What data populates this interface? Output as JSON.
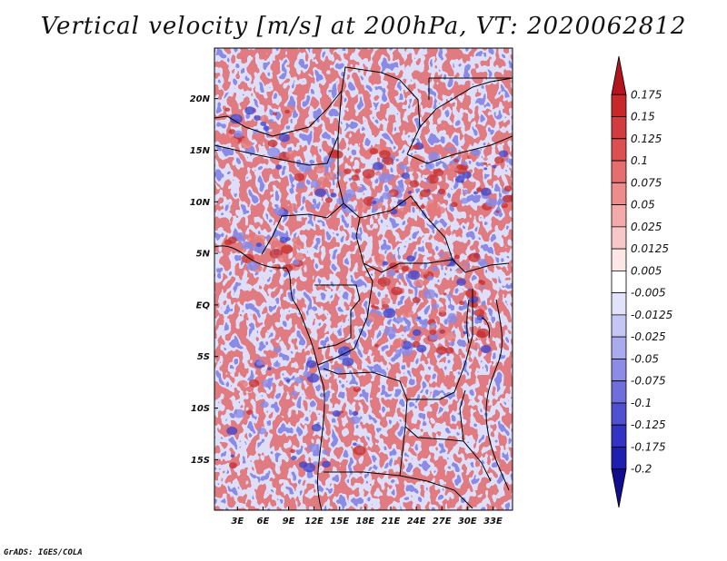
{
  "title": "Vertical velocity [m/s] at 200hPa, VT: 2020062812",
  "credit": "GrADS: IGES/COLA",
  "chart_data": {
    "type": "heatmap",
    "title": "Vertical velocity [m/s] at 200hPa, VT: 2020062812",
    "variable": "Vertical velocity",
    "units": "m/s",
    "level": "200hPa",
    "valid_time": "2020062812",
    "x_ticks": [
      {
        "value": 3,
        "label": "3E"
      },
      {
        "value": 6,
        "label": "6E"
      },
      {
        "value": 9,
        "label": "9E"
      },
      {
        "value": 12,
        "label": "12E"
      },
      {
        "value": 15,
        "label": "15E"
      },
      {
        "value": 18,
        "label": "18E"
      },
      {
        "value": 21,
        "label": "21E"
      },
      {
        "value": 24,
        "label": "24E"
      },
      {
        "value": 27,
        "label": "27E"
      },
      {
        "value": 30,
        "label": "30E"
      },
      {
        "value": 33,
        "label": "33E"
      }
    ],
    "y_ticks": [
      {
        "value": 20,
        "label": "20N"
      },
      {
        "value": 15,
        "label": "15N"
      },
      {
        "value": 10,
        "label": "10N"
      },
      {
        "value": 5,
        "label": "5N"
      },
      {
        "value": 0,
        "label": "EQ"
      },
      {
        "value": -5,
        "label": "5S"
      },
      {
        "value": -10,
        "label": "10S"
      },
      {
        "value": -15,
        "label": "15S"
      }
    ],
    "xlim": [
      0.3,
      35.3
    ],
    "ylim": [
      -19.9,
      24.9
    ],
    "colorbar": {
      "levels": [
        "0.175",
        "0.15",
        "0.125",
        "0.1",
        "0.075",
        "0.05",
        "0.025",
        "0.0125",
        "0.005",
        "-0.005",
        "-0.0125",
        "-0.025",
        "-0.05",
        "-0.075",
        "-0.1",
        "-0.125",
        "-0.175",
        "-0.2"
      ],
      "colors": [
        "#b4141e",
        "#c82828",
        "#d23c3c",
        "#dc5050",
        "#e66e6e",
        "#ec8c8c",
        "#f3aaaa",
        "#f8c8c8",
        "#fce6e6",
        "#ffffff",
        "#e2e2fb",
        "#c6c6f5",
        "#aaaaee",
        "#8c8ce6",
        "#6e6edc",
        "#5050d2",
        "#3232c3",
        "#1e1eaf",
        "#100e8c"
      ]
    }
  }
}
